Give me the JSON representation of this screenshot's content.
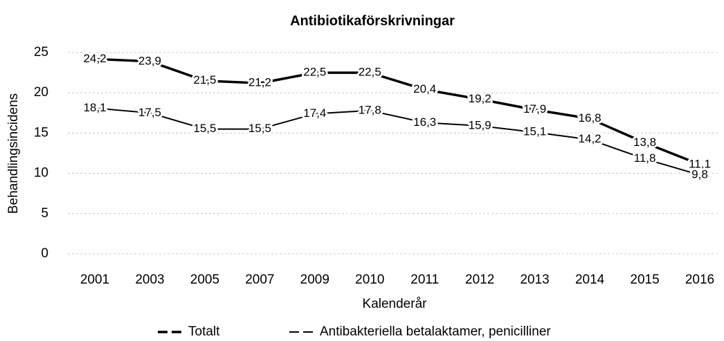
{
  "chart_data": {
    "type": "line",
    "title": "Antibiotikaförskrivningar",
    "x_label": "Kalenderår",
    "y_label": "Behandlingsincidens",
    "categories": [
      "2001",
      "2003",
      "2005",
      "2007",
      "2009",
      "2010",
      "2011",
      "2012",
      "2013",
      "2014",
      "2015",
      "2016"
    ],
    "series": [
      {
        "name": "Totalt",
        "color": "#000000",
        "values": [
          24.2,
          23.9,
          21.5,
          21.2,
          22.5,
          22.5,
          20.4,
          19.2,
          17.9,
          16.8,
          13.8,
          11.1
        ],
        "value_labels": [
          "24,2",
          "23,9",
          "21,5",
          "21,2",
          "22,5",
          "22,5",
          "20,4",
          "19,2",
          "17,9",
          "16,8",
          "13,8",
          "11,1"
        ]
      },
      {
        "name": "Antibakteriella betalaktamer, penicilliner",
        "color": "#000000",
        "values": [
          18.1,
          17.5,
          15.5,
          15.5,
          17.4,
          17.8,
          16.3,
          15.9,
          15.1,
          14.2,
          11.8,
          9.8
        ],
        "value_labels": [
          "18,1",
          "17,5",
          "15,5",
          "15,5",
          "17,4",
          "17,8",
          "16,3",
          "15,9",
          "15,1",
          "14,2",
          "11,8",
          "9,8"
        ]
      }
    ],
    "ylim": [
      0,
      25
    ],
    "yticks": [
      0,
      5,
      10,
      15,
      20,
      25
    ],
    "grid": true,
    "legend": "bottom"
  }
}
